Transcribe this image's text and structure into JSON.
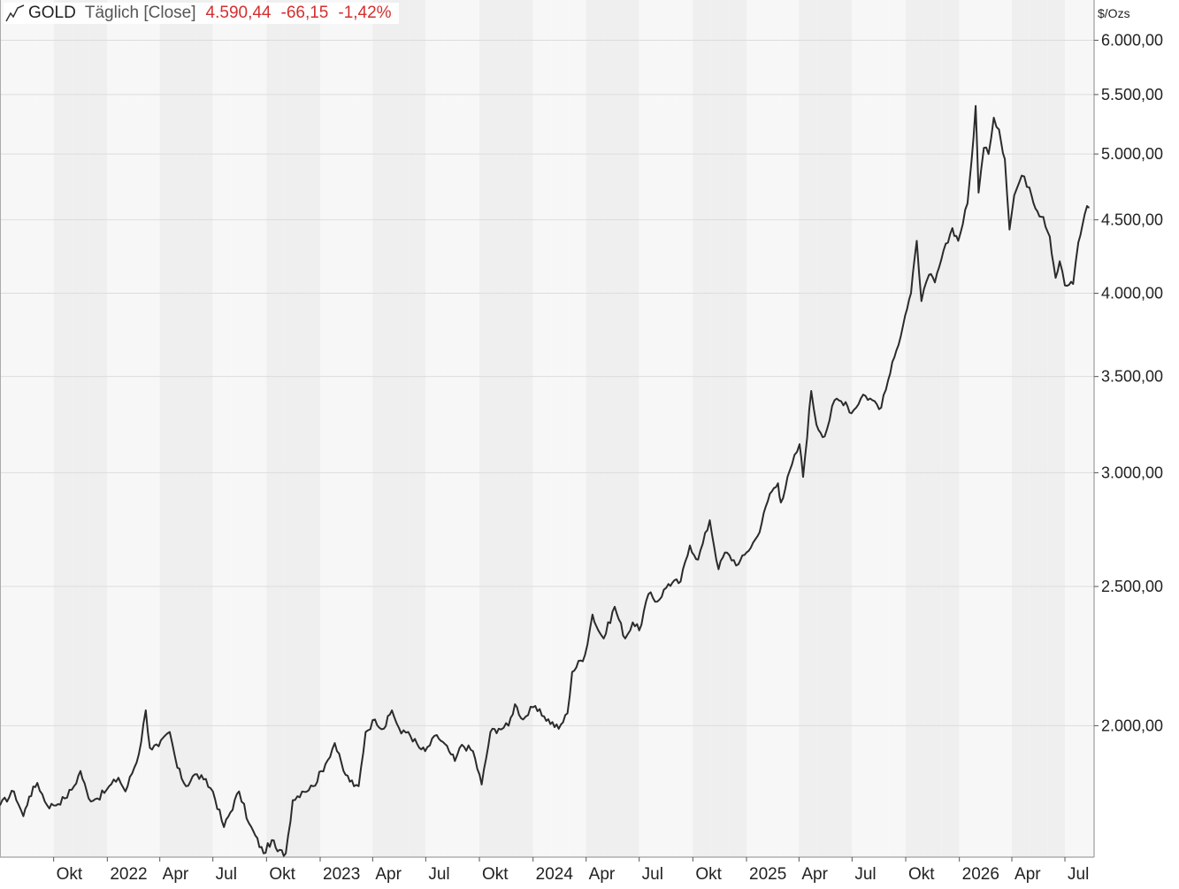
{
  "header": {
    "symbol": "GOLD",
    "period": "Täglich [Close]",
    "last": "4.590,44",
    "change": "-66,15",
    "change_pct": "-1,42%"
  },
  "colors": {
    "line": "#2b2b2b",
    "negative": "#d32f2f",
    "band_light": "#f7f7f7",
    "band_dark": "#efefef",
    "grid": "#dcdcdc"
  },
  "chart_data": {
    "type": "line",
    "title": "GOLD",
    "unit_label": "$/Ozs",
    "y_scale": "log",
    "ylim": [
      1620,
      6400
    ],
    "xlim": [
      "2021-07-01",
      "2026-08-20"
    ],
    "y_ticks": [
      {
        "value": 2000,
        "label": "2.000,00"
      },
      {
        "value": 2500,
        "label": "2.500,00"
      },
      {
        "value": 3000,
        "label": "3.000,00"
      },
      {
        "value": 3500,
        "label": "3.500,00"
      },
      {
        "value": 4000,
        "label": "4.000,00"
      },
      {
        "value": 4500,
        "label": "4.500,00"
      },
      {
        "value": 5000,
        "label": "5.000,00"
      },
      {
        "value": 5500,
        "label": "5.500,00"
      },
      {
        "value": 6000,
        "label": "6.000,00"
      }
    ],
    "x_ticks": [
      {
        "date": "2021-10-01",
        "label": "Okt"
      },
      {
        "date": "2022-01-01",
        "label": "2022"
      },
      {
        "date": "2022-04-01",
        "label": "Apr"
      },
      {
        "date": "2022-07-01",
        "label": "Jul"
      },
      {
        "date": "2022-10-01",
        "label": "Okt"
      },
      {
        "date": "2023-01-01",
        "label": "2023"
      },
      {
        "date": "2023-04-01",
        "label": "Apr"
      },
      {
        "date": "2023-07-01",
        "label": "Jul"
      },
      {
        "date": "2023-10-01",
        "label": "Okt"
      },
      {
        "date": "2024-01-01",
        "label": "2024"
      },
      {
        "date": "2024-04-01",
        "label": "Apr"
      },
      {
        "date": "2024-07-01",
        "label": "Jul"
      },
      {
        "date": "2024-10-01",
        "label": "Okt"
      },
      {
        "date": "2025-01-01",
        "label": "2025"
      },
      {
        "date": "2025-04-01",
        "label": "Apr"
      },
      {
        "date": "2025-07-01",
        "label": "Jul"
      },
      {
        "date": "2025-10-01",
        "label": "Okt"
      },
      {
        "date": "2026-01-01",
        "label": "2026"
      },
      {
        "date": "2026-04-01",
        "label": "Apr"
      },
      {
        "date": "2026-07-01",
        "label": "Jul"
      }
    ],
    "grid": true,
    "series": [
      {
        "name": "GOLD",
        "points": [
          [
            "2021-07-01",
            1760
          ],
          [
            "2021-07-25",
            1800
          ],
          [
            "2021-08-10",
            1730
          ],
          [
            "2021-08-20",
            1785
          ],
          [
            "2021-09-03",
            1825
          ],
          [
            "2021-09-20",
            1760
          ],
          [
            "2021-10-01",
            1760
          ],
          [
            "2021-10-20",
            1780
          ],
          [
            "2021-11-05",
            1815
          ],
          [
            "2021-11-16",
            1860
          ],
          [
            "2021-11-30",
            1780
          ],
          [
            "2021-12-15",
            1780
          ],
          [
            "2021-12-31",
            1805
          ],
          [
            "2022-01-20",
            1840
          ],
          [
            "2022-02-01",
            1800
          ],
          [
            "2022-02-24",
            1910
          ],
          [
            "2022-03-08",
            2050
          ],
          [
            "2022-03-15",
            1930
          ],
          [
            "2022-03-30",
            1935
          ],
          [
            "2022-04-18",
            1980
          ],
          [
            "2022-05-01",
            1870
          ],
          [
            "2022-05-16",
            1815
          ],
          [
            "2022-05-31",
            1850
          ],
          [
            "2022-06-15",
            1835
          ],
          [
            "2022-07-01",
            1800
          ],
          [
            "2022-07-20",
            1700
          ],
          [
            "2022-08-15",
            1800
          ],
          [
            "2022-09-01",
            1710
          ],
          [
            "2022-09-26",
            1630
          ],
          [
            "2022-10-10",
            1665
          ],
          [
            "2022-10-20",
            1635
          ],
          [
            "2022-11-03",
            1630
          ],
          [
            "2022-11-15",
            1775
          ],
          [
            "2022-12-01",
            1800
          ],
          [
            "2022-12-20",
            1815
          ],
          [
            "2023-01-10",
            1880
          ],
          [
            "2023-01-26",
            1945
          ],
          [
            "2023-02-10",
            1860
          ],
          [
            "2023-02-28",
            1815
          ],
          [
            "2023-03-08",
            1815
          ],
          [
            "2023-03-20",
            1980
          ],
          [
            "2023-04-05",
            2020
          ],
          [
            "2023-04-20",
            1990
          ],
          [
            "2023-05-04",
            2050
          ],
          [
            "2023-05-20",
            1975
          ],
          [
            "2023-06-01",
            1980
          ],
          [
            "2023-06-20",
            1930
          ],
          [
            "2023-06-30",
            1920
          ],
          [
            "2023-07-20",
            1970
          ],
          [
            "2023-08-10",
            1920
          ],
          [
            "2023-08-20",
            1890
          ],
          [
            "2023-09-01",
            1940
          ],
          [
            "2023-09-20",
            1920
          ],
          [
            "2023-10-05",
            1820
          ],
          [
            "2023-10-20",
            1980
          ],
          [
            "2023-11-03",
            1990
          ],
          [
            "2023-11-20",
            2000
          ],
          [
            "2023-12-01",
            2070
          ],
          [
            "2023-12-15",
            2020
          ],
          [
            "2024-01-01",
            2060
          ],
          [
            "2024-01-20",
            2030
          ],
          [
            "2024-02-14",
            1990
          ],
          [
            "2024-02-29",
            2040
          ],
          [
            "2024-03-08",
            2180
          ],
          [
            "2024-03-30",
            2240
          ],
          [
            "2024-04-12",
            2390
          ],
          [
            "2024-04-22",
            2330
          ],
          [
            "2024-05-01",
            2300
          ],
          [
            "2024-05-20",
            2420
          ],
          [
            "2024-06-07",
            2300
          ],
          [
            "2024-06-20",
            2360
          ],
          [
            "2024-07-01",
            2330
          ],
          [
            "2024-07-17",
            2470
          ],
          [
            "2024-08-01",
            2440
          ],
          [
            "2024-08-20",
            2510
          ],
          [
            "2024-09-10",
            2520
          ],
          [
            "2024-09-26",
            2670
          ],
          [
            "2024-10-10",
            2610
          ],
          [
            "2024-10-30",
            2780
          ],
          [
            "2024-11-14",
            2570
          ],
          [
            "2024-11-25",
            2640
          ],
          [
            "2024-12-18",
            2590
          ],
          [
            "2025-01-01",
            2640
          ],
          [
            "2025-01-20",
            2710
          ],
          [
            "2025-02-10",
            2900
          ],
          [
            "2025-02-24",
            2950
          ],
          [
            "2025-03-01",
            2860
          ],
          [
            "2025-03-20",
            3040
          ],
          [
            "2025-04-02",
            3140
          ],
          [
            "2025-04-08",
            2980
          ],
          [
            "2025-04-22",
            3420
          ],
          [
            "2025-05-01",
            3240
          ],
          [
            "2025-05-15",
            3180
          ],
          [
            "2025-06-01",
            3370
          ],
          [
            "2025-06-20",
            3360
          ],
          [
            "2025-06-30",
            3300
          ],
          [
            "2025-07-20",
            3400
          ],
          [
            "2025-08-05",
            3370
          ],
          [
            "2025-08-20",
            3330
          ],
          [
            "2025-09-01",
            3480
          ],
          [
            "2025-09-15",
            3650
          ],
          [
            "2025-09-30",
            3860
          ],
          [
            "2025-10-10",
            4000
          ],
          [
            "2025-10-20",
            4350
          ],
          [
            "2025-10-28",
            3950
          ],
          [
            "2025-11-10",
            4120
          ],
          [
            "2025-11-20",
            4070
          ],
          [
            "2025-12-01",
            4220
          ],
          [
            "2025-12-20",
            4440
          ],
          [
            "2025-12-30",
            4350
          ],
          [
            "2026-01-15",
            4620
          ],
          [
            "2026-01-22",
            4950
          ],
          [
            "2026-01-29",
            5400
          ],
          [
            "2026-02-03",
            4700
          ],
          [
            "2026-02-12",
            5050
          ],
          [
            "2026-02-20",
            5000
          ],
          [
            "2026-03-01",
            5300
          ],
          [
            "2026-03-10",
            5200
          ],
          [
            "2026-03-20",
            4960
          ],
          [
            "2026-03-28",
            4430
          ],
          [
            "2026-04-05",
            4680
          ],
          [
            "2026-04-18",
            4830
          ],
          [
            "2026-05-01",
            4740
          ],
          [
            "2026-05-15",
            4560
          ],
          [
            "2026-05-25",
            4520
          ],
          [
            "2026-06-05",
            4380
          ],
          [
            "2026-06-15",
            4100
          ],
          [
            "2026-06-22",
            4210
          ],
          [
            "2026-07-01",
            4050
          ],
          [
            "2026-07-15",
            4060
          ],
          [
            "2026-07-24",
            4340
          ],
          [
            "2026-07-31",
            4460
          ],
          [
            "2026-08-08",
            4600
          ],
          [
            "2026-08-12",
            4590
          ]
        ]
      }
    ]
  }
}
